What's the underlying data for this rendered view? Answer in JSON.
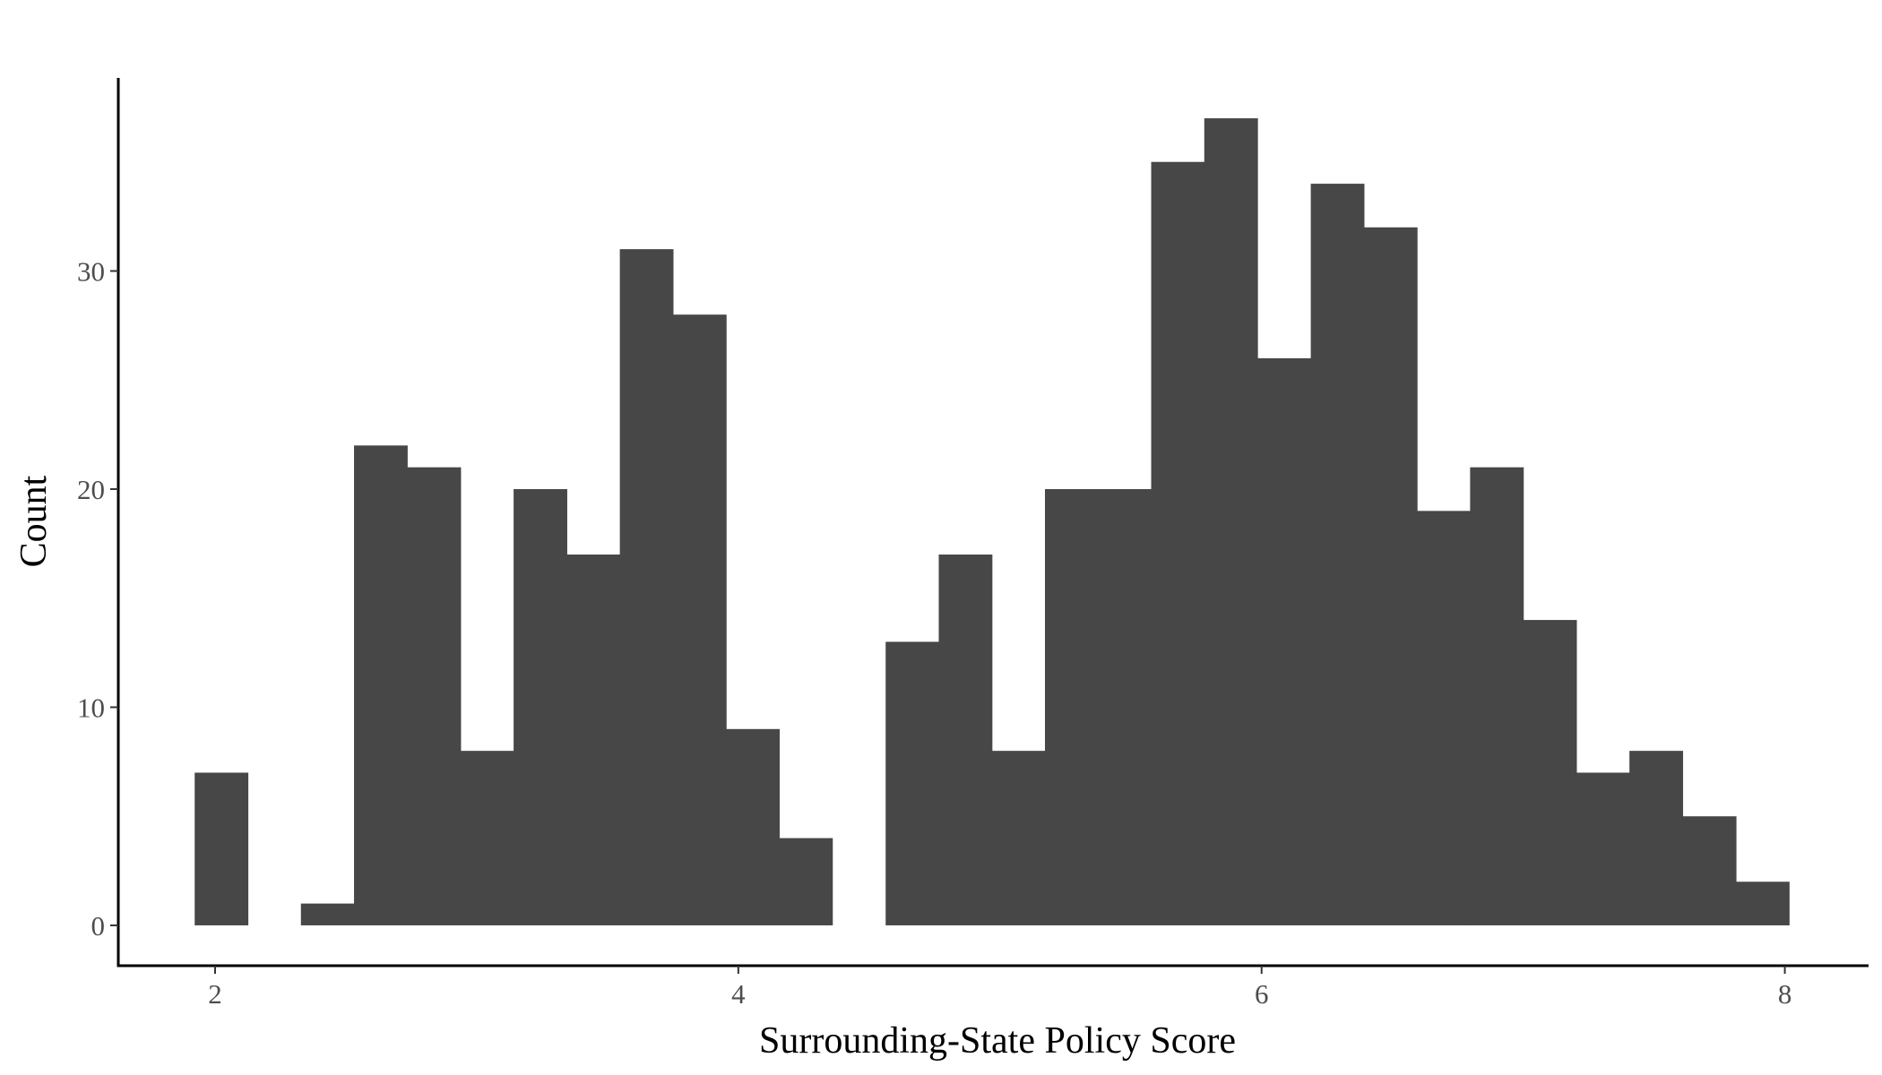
{
  "colors": {
    "background": "#ffffff",
    "bar_fill": "#474747",
    "axis_line": "#000000",
    "tick_line": "#333333",
    "tick_text": "#4d4d4d",
    "title_text": "#000000"
  },
  "chart_data": {
    "type": "bar",
    "subtype": "histogram",
    "title": "",
    "xlabel": "Surrounding-State Policy Score",
    "ylabel": "Count",
    "xlim": [
      1.63,
      8.32
    ],
    "ylim": [
      -1.85,
      38.85
    ],
    "xticks": [
      2,
      4,
      6,
      8
    ],
    "yticks": [
      0,
      10,
      20,
      30
    ],
    "grid": false,
    "legend": "none",
    "bin_width": 0.2031,
    "bins": [
      {
        "x0": 1.922,
        "x1": 2.125,
        "count": 7
      },
      {
        "x0": 2.125,
        "x1": 2.328,
        "count": 0
      },
      {
        "x0": 2.328,
        "x1": 2.531,
        "count": 1
      },
      {
        "x0": 2.531,
        "x1": 2.734,
        "count": 22
      },
      {
        "x0": 2.734,
        "x1": 2.938,
        "count": 21
      },
      {
        "x0": 2.938,
        "x1": 3.141,
        "count": 8
      },
      {
        "x0": 3.141,
        "x1": 3.344,
        "count": 20
      },
      {
        "x0": 3.344,
        "x1": 3.547,
        "count": 17
      },
      {
        "x0": 3.547,
        "x1": 3.75,
        "count": 31
      },
      {
        "x0": 3.75,
        "x1": 3.953,
        "count": 28
      },
      {
        "x0": 3.953,
        "x1": 4.156,
        "count": 9
      },
      {
        "x0": 4.156,
        "x1": 4.359,
        "count": 4
      },
      {
        "x0": 4.359,
        "x1": 4.563,
        "count": 0
      },
      {
        "x0": 4.563,
        "x1": 4.766,
        "count": 13
      },
      {
        "x0": 4.766,
        "x1": 4.969,
        "count": 17
      },
      {
        "x0": 4.969,
        "x1": 5.172,
        "count": 8
      },
      {
        "x0": 5.172,
        "x1": 5.375,
        "count": 20
      },
      {
        "x0": 5.375,
        "x1": 5.578,
        "count": 20
      },
      {
        "x0": 5.578,
        "x1": 5.781,
        "count": 35
      },
      {
        "x0": 5.781,
        "x1": 5.984,
        "count": 37
      },
      {
        "x0": 5.984,
        "x1": 6.188,
        "count": 26
      },
      {
        "x0": 6.188,
        "x1": 6.391,
        "count": 34
      },
      {
        "x0": 6.391,
        "x1": 6.594,
        "count": 32
      },
      {
        "x0": 6.594,
        "x1": 6.797,
        "count": 19
      },
      {
        "x0": 6.797,
        "x1": 7.0,
        "count": 21
      },
      {
        "x0": 7.0,
        "x1": 7.203,
        "count": 14
      },
      {
        "x0": 7.203,
        "x1": 7.406,
        "count": 7
      },
      {
        "x0": 7.406,
        "x1": 7.609,
        "count": 8
      },
      {
        "x0": 7.609,
        "x1": 7.813,
        "count": 5
      },
      {
        "x0": 7.813,
        "x1": 8.016,
        "count": 2
      }
    ]
  }
}
